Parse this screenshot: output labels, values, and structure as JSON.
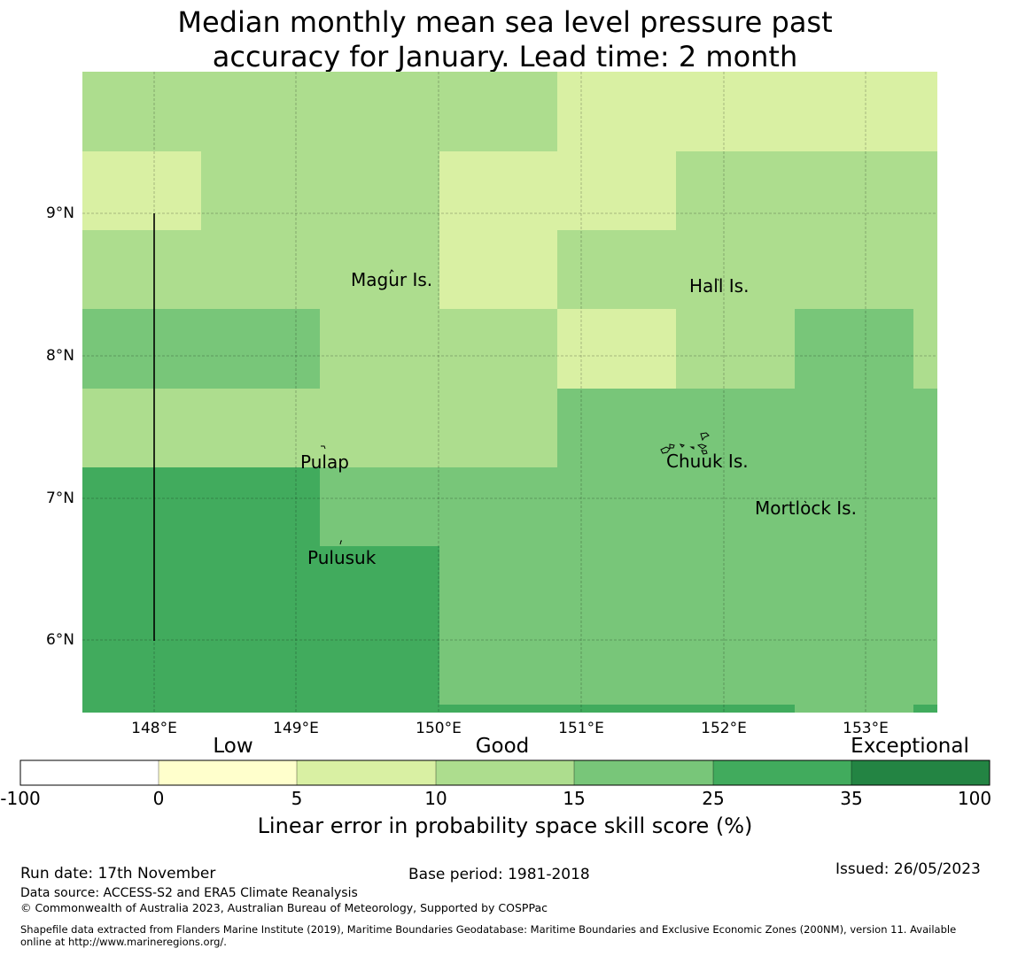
{
  "title": {
    "line1": "Median monthly mean sea level pressure past",
    "line2": "accuracy for January. Lead time: 2 month"
  },
  "map": {
    "lat_ticks": [
      "9°N",
      "8°N",
      "7°N",
      "6°N"
    ],
    "lon_ticks": [
      "148°E",
      "149°E",
      "150°E",
      "151°E",
      "152°E",
      "153°E"
    ],
    "places": [
      {
        "name": "Magur Is."
      },
      {
        "name": "Hall Is."
      },
      {
        "name": "Pulap"
      },
      {
        "name": "Chuuk Is."
      },
      {
        "name": "Mortlock Is."
      },
      {
        "name": "Pulusuk"
      }
    ],
    "colors": {
      "c0_5": "#ffffcc",
      "c5_10": "#d9f0a3",
      "c10_15": "#addd8e",
      "c15_25": "#78c679",
      "c25_35": "#41ab5d",
      "c35_100": "#238443"
    }
  },
  "colorbar": {
    "categories": [
      "Low",
      "Good",
      "Exceptional"
    ],
    "ticks": [
      "-100",
      "0",
      "5",
      "10",
      "15",
      "25",
      "35",
      "100"
    ],
    "segment_colors": [
      "#ffffff",
      "#ffffcc",
      "#d9f0a3",
      "#addd8e",
      "#78c679",
      "#41ab5d",
      "#238443"
    ],
    "label": "Linear error in probability space skill score (%)"
  },
  "footer": {
    "run_date": "Run date: 17th November",
    "base_period": "Base period: 1981-2018",
    "issued": "Issued: 26/05/2023",
    "data_source": "Data source: ACCESS-S2 and ERA5 Climate Reanalysis",
    "copyright": "© Commonwealth of Australia 2023, Australian Bureau of Meteorology, Supported by COSPPac",
    "shapefile_line1": "Shapefile data extracted from Flanders Marine Institute (2019), Maritime Boundaries Geodatabase: Maritime Boundaries and Exclusive Economic Zones (200NM), version 11. Available",
    "shapefile_line2": "online at http://www.marineregions.org/."
  }
}
